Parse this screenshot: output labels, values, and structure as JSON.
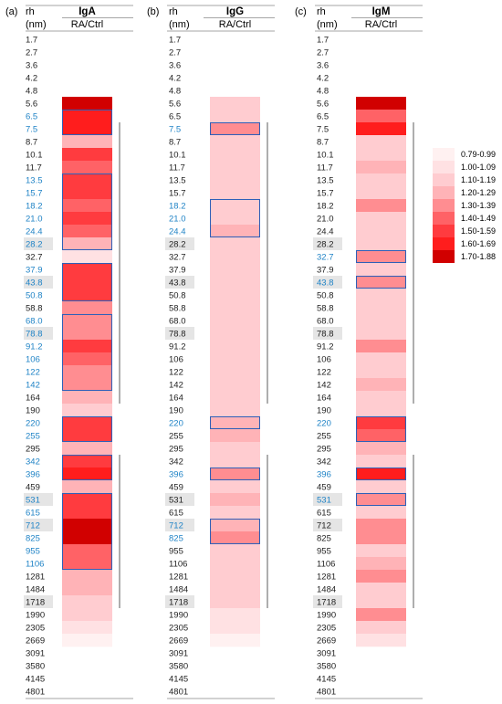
{
  "chart_data": {
    "type": "heatmap",
    "row_header": "rh",
    "row_unit": "(nm)",
    "subheader": "RA/Ctrl",
    "rows": [
      "1.7",
      "2.7",
      "3.6",
      "4.2",
      "4.8",
      "5.6",
      "6.5",
      "7.5",
      "8.7",
      "10.1",
      "11.7",
      "13.5",
      "15.7",
      "18.2",
      "21.0",
      "24.4",
      "28.2",
      "32.7",
      "37.9",
      "43.8",
      "50.8",
      "58.8",
      "68.0",
      "78.8",
      "91.2",
      "106",
      "122",
      "142",
      "164",
      "190",
      "220",
      "255",
      "295",
      "342",
      "396",
      "459",
      "531",
      "615",
      "712",
      "825",
      "955",
      "1106",
      "1281",
      "1484",
      "1718",
      "1990",
      "2305",
      "2669",
      "3091",
      "3580",
      "4145",
      "4801"
    ],
    "legend": [
      {
        "label": "0.79-0.99",
        "color": "#fff1f1"
      },
      {
        "label": "1.00-1.09",
        "color": "#ffe1e3"
      },
      {
        "label": "1.10-1.19",
        "color": "#ffccd0"
      },
      {
        "label": "1.20-1.29",
        "color": "#ffb3b7"
      },
      {
        "label": "1.30-1.39",
        "color": "#ff8d91"
      },
      {
        "label": "1.40-1.49",
        "color": "#ff6266"
      },
      {
        "label": "1.50-1.59",
        "color": "#ff3b3f"
      },
      {
        "label": "1.60-1.69",
        "color": "#ff1d1d"
      },
      {
        "label": "1.70-1.88",
        "color": "#d10000"
      }
    ],
    "panels": [
      {
        "letter": "(a)",
        "title": "IgA",
        "blue_labels": [
          6,
          7,
          11,
          12,
          13,
          14,
          15,
          16,
          18,
          19,
          20,
          22,
          23,
          24,
          25,
          26,
          27,
          30,
          31,
          33,
          34,
          36,
          37,
          38,
          39,
          40,
          41
        ],
        "gray_labels": [
          16,
          19,
          23,
          36,
          38,
          44
        ],
        "levels": [
          null,
          null,
          null,
          null,
          null,
          8,
          7,
          7,
          3,
          6,
          5,
          6,
          6,
          5,
          6,
          5,
          3,
          1,
          6,
          6,
          6,
          4,
          4,
          4,
          6,
          5,
          4,
          4,
          3,
          2,
          6,
          6,
          3,
          6,
          7,
          3,
          6,
          6,
          8,
          8,
          5,
          5,
          3,
          3,
          2,
          2,
          1,
          0,
          null,
          null,
          null,
          null
        ],
        "boxes": [
          [
            6,
            7
          ],
          [
            11,
            16
          ],
          [
            18,
            20
          ],
          [
            22,
            27
          ],
          [
            30,
            31
          ],
          [
            33,
            34
          ],
          [
            36,
            41
          ]
        ],
        "brackets": [
          [
            7,
            28
          ],
          [
            33,
            44
          ]
        ]
      },
      {
        "letter": "(b)",
        "title": "IgG",
        "blue_labels": [
          7,
          13,
          14,
          15,
          30,
          34,
          38,
          39
        ],
        "gray_labels": [
          16,
          19,
          23,
          36,
          38,
          44
        ],
        "levels": [
          null,
          null,
          null,
          null,
          null,
          2,
          2,
          4,
          2,
          2,
          2,
          2,
          2,
          2,
          2,
          3,
          2,
          2,
          2,
          2,
          2,
          2,
          2,
          2,
          2,
          2,
          2,
          2,
          2,
          2,
          3,
          3,
          2,
          2,
          4,
          2,
          3,
          2,
          3,
          4,
          2,
          2,
          2,
          2,
          2,
          1,
          1,
          0,
          null,
          null,
          null,
          null
        ],
        "boxes": [
          [
            7,
            7
          ],
          [
            13,
            15
          ],
          [
            30,
            30
          ],
          [
            34,
            34
          ],
          [
            38,
            39
          ]
        ],
        "brackets": [
          [
            7,
            28
          ],
          [
            33,
            44
          ]
        ]
      },
      {
        "letter": "(c)",
        "title": "IgM",
        "blue_labels": [
          17,
          19,
          30,
          34,
          36
        ],
        "gray_labels": [
          16,
          19,
          23,
          36,
          38,
          44
        ],
        "levels": [
          null,
          null,
          null,
          null,
          null,
          8,
          5,
          7,
          2,
          2,
          3,
          2,
          2,
          4,
          2,
          2,
          2,
          4,
          2,
          4,
          2,
          2,
          2,
          2,
          4,
          2,
          2,
          3,
          2,
          2,
          6,
          5,
          3,
          2,
          7,
          2,
          4,
          2,
          4,
          4,
          2,
          3,
          4,
          2,
          2,
          4,
          2,
          1,
          null,
          null,
          null,
          null
        ],
        "boxes": [
          [
            17,
            17
          ],
          [
            19,
            19
          ],
          [
            30,
            31
          ],
          [
            34,
            34
          ],
          [
            36,
            36
          ]
        ],
        "brackets": [
          [
            7,
            28
          ],
          [
            33,
            44
          ]
        ]
      }
    ]
  }
}
